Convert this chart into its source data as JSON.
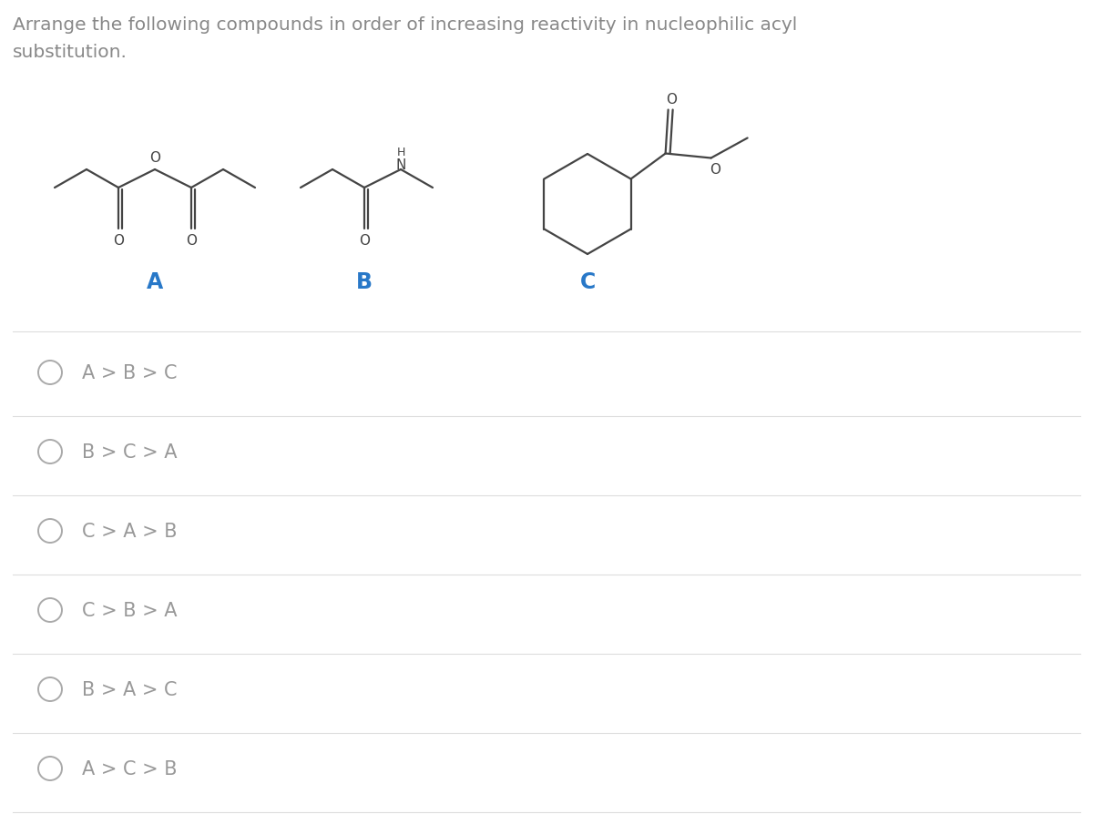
{
  "title_line1": "Arrange the following compounds in order of increasing reactivity in nucleophilic acyl",
  "title_line2": "substitution.",
  "title_fontsize": 14.5,
  "title_color": "#888888",
  "bg_color": "#ffffff",
  "label_color": "#2878c8",
  "label_fontsize": 17,
  "labels": [
    "A",
    "B",
    "C"
  ],
  "options": [
    "A > B > C",
    "B > C > A",
    "C > A > B",
    "C > B > A",
    "B > A > C",
    "A > C > B"
  ],
  "option_fontsize": 15,
  "option_color": "#999999",
  "circle_color": "#aaaaaa",
  "divider_color": "#dddddd",
  "divider_linewidth": 0.8,
  "struct_color": "#444444",
  "struct_lw": 1.6
}
